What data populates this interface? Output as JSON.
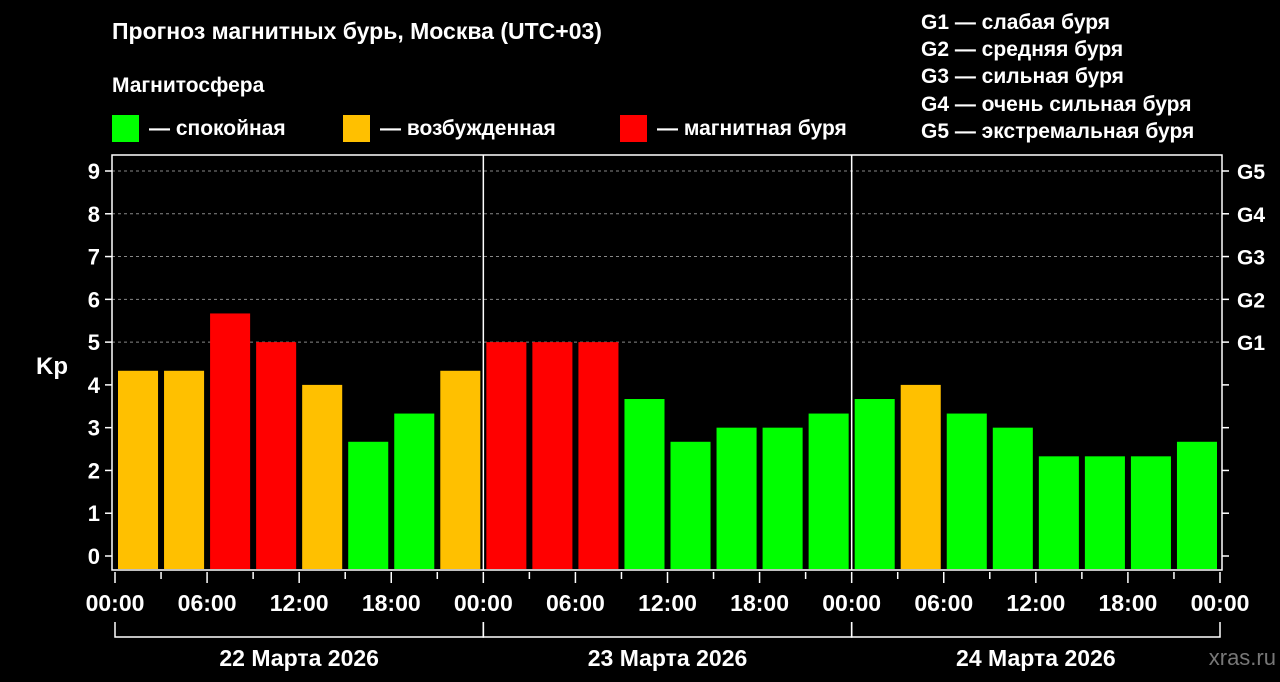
{
  "chart_data": {
    "type": "bar",
    "title": "Прогноз магнитных бурь, Москва (UTC+03)",
    "ylabel": "Kp",
    "ylim": [
      0,
      9
    ],
    "yticks": [
      "0",
      "1",
      "2",
      "3",
      "4",
      "5",
      "6",
      "7",
      "8",
      "9"
    ],
    "right_ticks": [
      {
        "y": 5,
        "label": "G1"
      },
      {
        "y": 6,
        "label": "G2"
      },
      {
        "y": 7,
        "label": "G3"
      },
      {
        "y": 8,
        "label": "G4"
      },
      {
        "y": 9,
        "label": "G5"
      }
    ],
    "grid": true,
    "xtick_labels": [
      "00:00",
      "06:00",
      "12:00",
      "18:00",
      "00:00",
      "06:00",
      "12:00",
      "18:00",
      "00:00",
      "06:00",
      "12:00",
      "18:00",
      "00:00"
    ],
    "days": [
      "22 Марта 2026",
      "23 Марта 2026",
      "24 Марта 2026"
    ],
    "interval_hours": 3,
    "values": [
      4.33,
      4.33,
      5.67,
      5.0,
      4.0,
      2.67,
      3.33,
      4.33,
      5.0,
      5.0,
      5.0,
      3.67,
      2.67,
      3.0,
      3.0,
      3.33,
      3.67,
      4.0,
      3.33,
      3.0,
      2.33,
      2.33,
      2.33,
      2.67
    ],
    "legend": {
      "title": "Магнитосфера",
      "items": [
        {
          "label": "— спокойная",
          "color": "#00FF00"
        },
        {
          "label": "— возбужденная",
          "color": "#FFC000"
        },
        {
          "label": "— магнитная буря",
          "color": "#FF0000"
        }
      ]
    },
    "g_legend": [
      "G1 — слабая буря",
      "G2 — средняя буря",
      "G3 — сильная буря",
      "G4 — очень сильная буря",
      "G5 — экстремальная буря"
    ]
  },
  "watermark": "xras.ru"
}
